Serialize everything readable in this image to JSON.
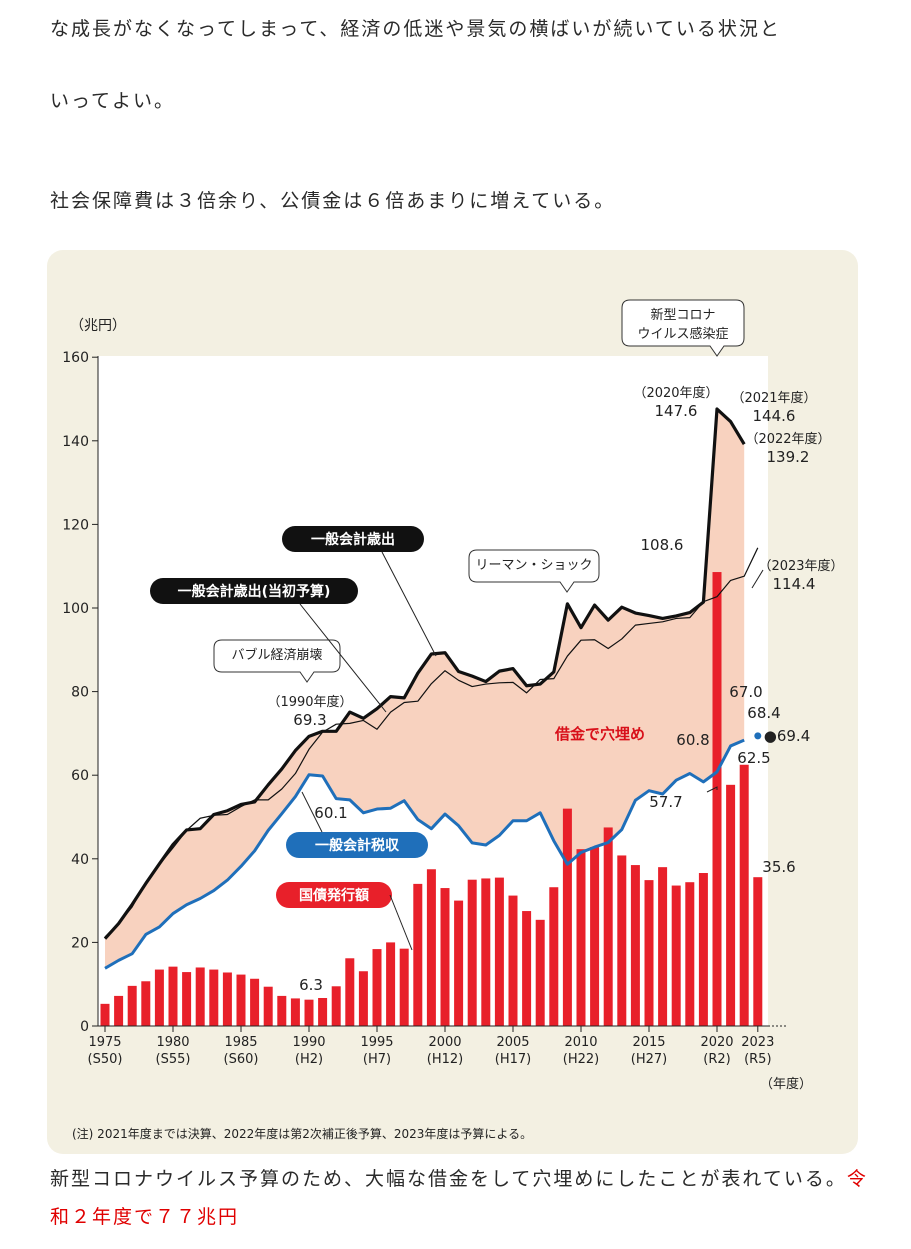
{
  "text": {
    "line1": "な成長がなくなってしまって、経済の低迷や景気の横ばいが続いている状況と",
    "line2": "いってよい。",
    "line3": "社会保障費は３倍余り、公債金は６倍あまりに増えている。",
    "line4a": "新型コロナウイルス予算のため、大幅な借金をして穴埋めにしたことが表れている。",
    "line4b": "令和２年度で７７兆円"
  },
  "colors": {
    "spending": "#111111",
    "initial_budget": "#111111",
    "tax": "#1f6fba",
    "bonds": "#e8202a",
    "fill": "#f8d2bf",
    "panel": "#f3f0e2"
  },
  "chart_data": {
    "type": "line",
    "unit_label": "（兆円）",
    "year_unit_label": "（年度）",
    "ylim": [
      0,
      160
    ],
    "yticks": [
      "0",
      "20",
      "40",
      "60",
      "80",
      "100",
      "120",
      "140",
      "160"
    ],
    "xlim": [
      1975,
      2023
    ],
    "xticks": [
      {
        "year": 1975,
        "label": "1975",
        "era": "(S50)"
      },
      {
        "year": 1980,
        "label": "1980",
        "era": "(S55)"
      },
      {
        "year": 1985,
        "label": "1985",
        "era": "(S60)"
      },
      {
        "year": 1990,
        "label": "1990",
        "era": "(H2)"
      },
      {
        "year": 1995,
        "label": "1995",
        "era": "(H7)"
      },
      {
        "year": 2000,
        "label": "2000",
        "era": "(H12)"
      },
      {
        "year": 2005,
        "label": "2005",
        "era": "(H17)"
      },
      {
        "year": 2010,
        "label": "2010",
        "era": "(H22)"
      },
      {
        "year": 2015,
        "label": "2015",
        "era": "(H27)"
      },
      {
        "year": 2020,
        "label": "2020",
        "era": "(R2)"
      },
      {
        "year": 2023,
        "label": "2023",
        "era": "(R5)"
      }
    ],
    "years": [
      1975,
      1976,
      1977,
      1978,
      1979,
      1980,
      1981,
      1982,
      1983,
      1984,
      1985,
      1986,
      1987,
      1988,
      1989,
      1990,
      1991,
      1992,
      1993,
      1994,
      1995,
      1996,
      1997,
      1998,
      1999,
      2000,
      2001,
      2002,
      2003,
      2004,
      2005,
      2006,
      2007,
      2008,
      2009,
      2010,
      2011,
      2012,
      2013,
      2014,
      2015,
      2016,
      2017,
      2018,
      2019,
      2020,
      2021,
      2022,
      2023
    ],
    "series": [
      {
        "name": "一般会計歳出",
        "kind": "line",
        "values": [
          20.9,
          24.5,
          29.1,
          34.1,
          38.8,
          43.4,
          46.9,
          47.2,
          50.6,
          51.5,
          53.0,
          53.6,
          57.7,
          61.5,
          65.9,
          69.3,
          70.5,
          70.5,
          75.1,
          73.6,
          75.9,
          78.8,
          78.5,
          84.4,
          89.0,
          89.3,
          84.8,
          83.7,
          82.4,
          84.9,
          85.5,
          81.4,
          81.8,
          84.7,
          101.0,
          95.3,
          100.7,
          97.1,
          100.2,
          98.8,
          98.2,
          97.5,
          98.1,
          98.9,
          101.4,
          147.6,
          144.6,
          139.2,
          null
        ]
      },
      {
        "name": "一般会計歳出(当初予算)",
        "kind": "line",
        "values": [
          21.3,
          24.5,
          28.5,
          34.3,
          38.6,
          42.6,
          46.8,
          49.7,
          50.4,
          50.6,
          52.5,
          54.1,
          54.1,
          56.7,
          60.4,
          66.2,
          70.3,
          72.2,
          72.4,
          73.1,
          71.0,
          75.1,
          77.4,
          77.7,
          81.9,
          85.0,
          82.7,
          81.2,
          81.8,
          82.1,
          82.2,
          79.7,
          82.9,
          83.1,
          88.5,
          92.3,
          92.4,
          90.3,
          92.6,
          95.9,
          96.3,
          96.7,
          97.5,
          97.7,
          101.5,
          102.7,
          106.6,
          107.6,
          114.4
        ]
      },
      {
        "name": "一般会計税収",
        "kind": "line",
        "values": [
          13.8,
          15.7,
          17.3,
          21.9,
          23.7,
          26.9,
          29.0,
          30.5,
          32.4,
          34.9,
          38.2,
          41.9,
          46.8,
          50.8,
          54.9,
          60.1,
          59.8,
          54.4,
          54.1,
          51.0,
          51.9,
          52.1,
          53.9,
          49.4,
          47.2,
          50.7,
          47.9,
          43.8,
          43.3,
          45.6,
          49.1,
          49.1,
          51.0,
          44.3,
          38.7,
          41.5,
          42.8,
          43.9,
          47.0,
          54.0,
          56.3,
          55.5,
          58.8,
          60.4,
          58.4,
          60.8,
          67.0,
          68.4,
          69.4
        ]
      },
      {
        "name": "国債発行額",
        "kind": "bar",
        "values": [
          5.3,
          7.2,
          9.6,
          10.7,
          13.5,
          14.2,
          12.9,
          14.0,
          13.5,
          12.8,
          12.3,
          11.3,
          9.4,
          7.2,
          6.6,
          6.3,
          6.7,
          9.5,
          16.2,
          13.1,
          18.4,
          20.0,
          18.5,
          34.0,
          37.5,
          33.0,
          30.0,
          35.0,
          35.3,
          35.5,
          31.2,
          27.5,
          25.4,
          33.2,
          52.0,
          42.3,
          42.8,
          47.5,
          40.8,
          38.5,
          34.9,
          38.0,
          33.6,
          34.4,
          36.6,
          108.6,
          57.7,
          62.5,
          35.6
        ]
      }
    ],
    "annotations": {
      "covid_box": [
        "新型コロナ",
        "ウイルス感染症"
      ],
      "lehman_box": "リーマン・ショック",
      "bubble_box": "バブル経済崩壊",
      "label_spending": "一般会計歳出",
      "label_initial": "一般会計歳出(当初予算)",
      "label_tax": "一般会計税収",
      "label_bonds": "国債発行額",
      "label_fill": "借金で穴埋め",
      "y1990_year": "（1990年度）",
      "y1990_value": "69.3",
      "tax1990_value": "60.1",
      "bond1990_value": "6.3",
      "y2020_year": "（2020年度）",
      "y2020_value": "147.6",
      "y2021_year": "（2021年度）",
      "y2021_value": "144.6",
      "y2022_year": "（2022年度）",
      "y2022_value": "139.2",
      "y2023_year": "（2023年度）",
      "y2023_value": "114.4",
      "bond2020_value": "108.6",
      "tax2020_value": "60.8",
      "bond2021_value": "57.7",
      "tax2021_value": "67.0",
      "tax2022_value": "68.4",
      "bond2022_value": "62.5",
      "tax2023_value": "●69.4",
      "bond2023_value": "35.6"
    },
    "note": "(注) 2021年度までは決算、2022年度は第2次補正後予算、2023年度は予算による。"
  }
}
